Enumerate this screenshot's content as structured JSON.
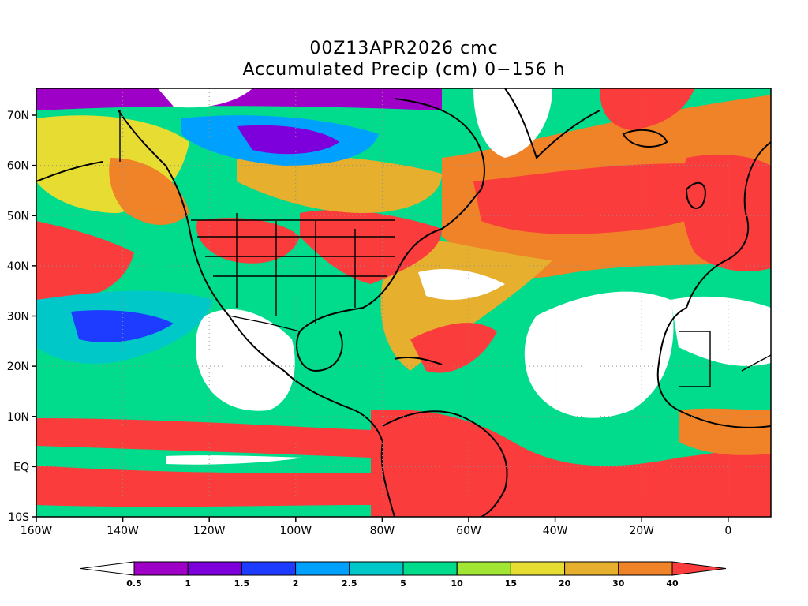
{
  "title_line1": "00Z13APR2026 cmc",
  "title_line2": "Accumulated Precip (cm) 0−156 h",
  "lat_labels": [
    "70N",
    "60N",
    "50N",
    "40N",
    "30N",
    "20N",
    "10N",
    "EQ",
    "10S"
  ],
  "lon_labels": [
    "160W",
    "140W",
    "120W",
    "100W",
    "80W",
    "60W",
    "40W",
    "20W",
    "0"
  ],
  "colorbar": {
    "thresholds": [
      "0.5",
      "1",
      "1.5",
      "2",
      "2.5",
      "5",
      "10",
      "15",
      "20",
      "30",
      "40"
    ],
    "colors": [
      "#ffffff",
      "#9f00c8",
      "#7d00dc",
      "#1e3cff",
      "#00a0ff",
      "#00c8c8",
      "#00dc8c",
      "#a0e632",
      "#e6dc32",
      "#e6af2d",
      "#f08228",
      "#fa3c3c"
    ]
  },
  "palette": {
    "red": "#fa3c3c",
    "orange": "#f08228",
    "amber": "#e6af2d",
    "yellow": "#e6dc32",
    "lime": "#a0e632",
    "green": "#00dc8c",
    "teal": "#00c8c8",
    "sky": "#00a0ff",
    "blue": "#1e3cff",
    "violet": "#7d00dc",
    "purple": "#9f00c8",
    "white": "#ffffff"
  }
}
